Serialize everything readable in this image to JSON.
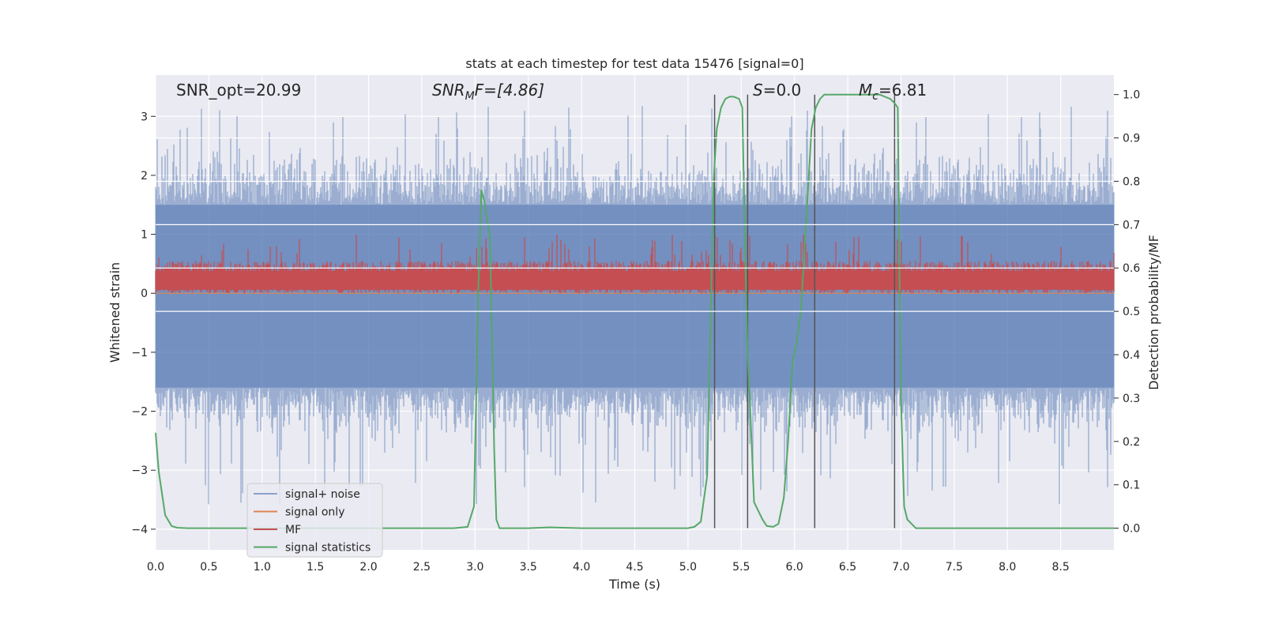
{
  "chart_data": {
    "type": "line",
    "title": "stats at each timestep for test data 15476 [signal=0]",
    "xlabel": "Time (s)",
    "ylabel": "Whitened strain",
    "ylabel_right": "Detection probability/MF",
    "xlim": [
      0.0,
      9.0
    ],
    "ylim": [
      -4.35,
      3.7
    ],
    "ylim_right": [
      -0.05,
      1.045
    ],
    "x_ticks": [
      "0.0",
      "0.5",
      "1.0",
      "1.5",
      "2.0",
      "2.5",
      "3.0",
      "3.5",
      "4.0",
      "4.5",
      "5.0",
      "5.5",
      "6.0",
      "6.5",
      "7.0",
      "7.5",
      "8.0",
      "8.5"
    ],
    "y_ticks": [
      "−4",
      "−3",
      "−2",
      "−1",
      "0",
      "1",
      "2",
      "3"
    ],
    "y_ticks_right": [
      "0.0",
      "0.1",
      "0.2",
      "0.3",
      "0.4",
      "0.5",
      "0.6",
      "0.7",
      "0.8",
      "0.9",
      "1.0"
    ],
    "annotations": {
      "snr_opt": "SNR_opt=20.99",
      "snr_mf_label": "SNR",
      "snr_mf_sub": "M",
      "snr_mf_rest": "F=[4.86]",
      "s_label": "S",
      "s_rest": "=0.0",
      "mc_label": "M",
      "mc_sub": "c",
      "mc_rest": "=6.81"
    },
    "series": [
      {
        "name": "signal+ noise",
        "color": "#4c72b0",
        "axis": "left",
        "description": "whitened noise, approx. N(0,1) band, peaks to about ±3",
        "envelope": {
          "lower": -1.5,
          "upper": 1.5,
          "spike_max": 3.2,
          "spike_min": -3.6
        }
      },
      {
        "name": "signal only",
        "color": "#dd8452",
        "axis": "left",
        "description": "flat near zero",
        "value": 0.0
      },
      {
        "name": "MF",
        "color": "#c44e52",
        "axis": "left",
        "description": "matched-filter output band between 0 and about 0.6",
        "envelope": {
          "lower": 0.0,
          "upper": 0.55,
          "spike_max": 1.0
        }
      },
      {
        "name": "signal statistics",
        "color": "#55a868",
        "axis": "right",
        "x": [
          0.0,
          0.03,
          0.09,
          0.15,
          0.2,
          0.3,
          0.5,
          1.0,
          1.5,
          2.0,
          2.5,
          2.8,
          2.93,
          2.99,
          3.03,
          3.06,
          3.09,
          3.14,
          3.18,
          3.2,
          3.23,
          3.26,
          3.3,
          3.5,
          3.7,
          4.0,
          4.5,
          5.0,
          5.06,
          5.12,
          5.18,
          5.21,
          5.24,
          5.27,
          5.31,
          5.35,
          5.39,
          5.43,
          5.48,
          5.51,
          5.54,
          5.56,
          5.58,
          5.62,
          5.66,
          5.7,
          5.74,
          5.8,
          5.85,
          5.9,
          5.94,
          5.98,
          6.02,
          6.06,
          6.12,
          6.16,
          6.2,
          6.24,
          6.28,
          6.34,
          6.4,
          6.5,
          6.6,
          6.7,
          6.8,
          6.9,
          6.94,
          6.97,
          7.0,
          7.03,
          7.06,
          7.1,
          7.14,
          7.2,
          7.5,
          8.0,
          8.5,
          9.0
        ],
        "values": [
          0.22,
          0.13,
          0.03,
          0.005,
          0.001,
          0.0,
          0.0,
          0.0,
          0.0,
          0.0,
          0.0,
          0.0,
          0.003,
          0.05,
          0.55,
          0.78,
          0.75,
          0.67,
          0.18,
          0.02,
          0.0,
          0.0,
          0.0,
          0.0,
          0.002,
          0.0,
          0.0,
          0.0,
          0.003,
          0.015,
          0.12,
          0.45,
          0.8,
          0.92,
          0.97,
          0.99,
          0.995,
          0.995,
          0.99,
          0.97,
          0.6,
          0.4,
          0.3,
          0.06,
          0.04,
          0.02,
          0.005,
          0.003,
          0.01,
          0.07,
          0.2,
          0.38,
          0.43,
          0.5,
          0.75,
          0.92,
          0.97,
          0.99,
          1.0,
          1.0,
          1.0,
          1.0,
          1.0,
          1.0,
          1.0,
          0.99,
          0.98,
          0.97,
          0.3,
          0.05,
          0.02,
          0.01,
          0.0,
          0.0,
          0.0,
          0.0,
          0.0,
          0.0
        ]
      }
    ],
    "vertical_lines": [
      5.25,
      5.56,
      6.19,
      6.94
    ],
    "legend": {
      "position": "lower-left",
      "entries": [
        {
          "label": "signal+ noise",
          "color": "#4c72b0"
        },
        {
          "label": "signal only",
          "color": "#dd8452"
        },
        {
          "label": "MF",
          "color": "#c44e52"
        },
        {
          "label": "signal statistics",
          "color": "#55a868"
        }
      ]
    },
    "style": {
      "background": "#eaeaf2",
      "grid": true
    }
  }
}
